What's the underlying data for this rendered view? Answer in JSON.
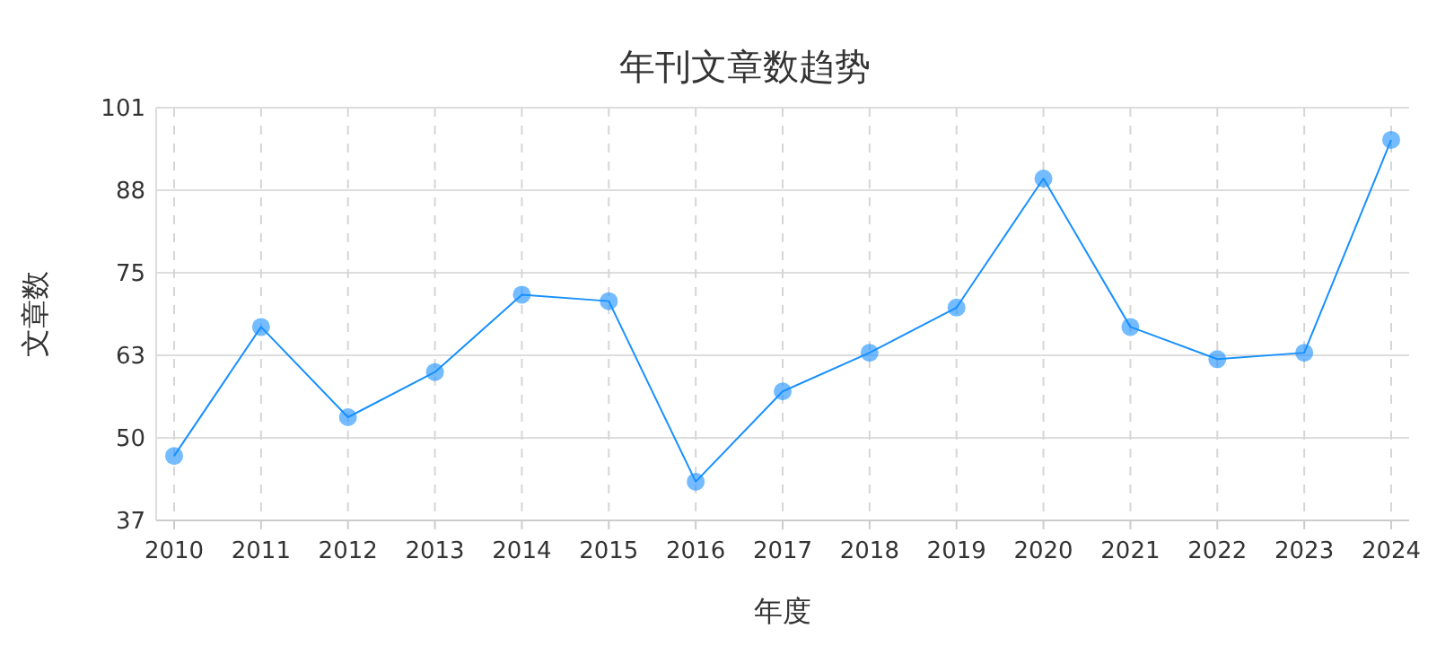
{
  "chart_data": {
    "type": "line",
    "title": "年刊文章数趋势",
    "xlabel": "年度",
    "ylabel": "文章数",
    "categories": [
      "2010",
      "2011",
      "2012",
      "2013",
      "2014",
      "2015",
      "2016",
      "2017",
      "2018",
      "2019",
      "2020",
      "2021",
      "2022",
      "2023",
      "2024"
    ],
    "series": [
      {
        "color": "#1890ff",
        "values": [
          47,
          67,
          53,
          60,
          72,
          71,
          43,
          57,
          63,
          70,
          90,
          67,
          62,
          63,
          96
        ]
      }
    ],
    "ylim": [
      37,
      101
    ],
    "yticks": [
      37,
      {
        "value": 49.8,
        "label": "50"
      },
      {
        "value": 62.6,
        "label": "63"
      },
      {
        "value": 75.4,
        "label": "75"
      },
      {
        "value": 88.2,
        "label": "88"
      },
      101
    ],
    "grid": true,
    "marker": "circle"
  }
}
